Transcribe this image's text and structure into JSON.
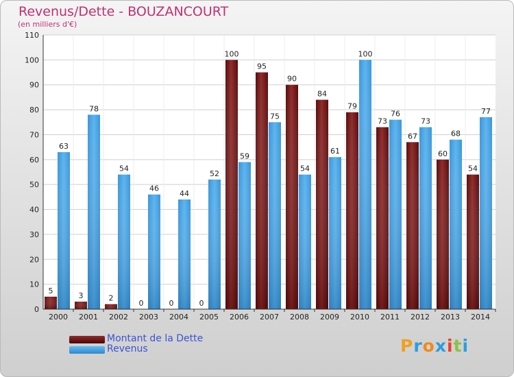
{
  "title": "Revenus/Dette - BOUZANCOURT",
  "subtitle": "(en milliers d'€)",
  "logo": {
    "letters": [
      "P",
      "r",
      "o",
      "x",
      "i",
      "t",
      "i"
    ],
    "colors": [
      "#f0a01e",
      "#2a9de0",
      "#f08a1a",
      "#2a9de0",
      "#e8402a",
      "#89c442",
      "#2a9de0"
    ]
  },
  "chart_data": {
    "type": "bar",
    "categories": [
      "2000",
      "2001",
      "2002",
      "2003",
      "2004",
      "2005",
      "2006",
      "2007",
      "2008",
      "2009",
      "2010",
      "2011",
      "2012",
      "2013",
      "2014"
    ],
    "series": [
      {
        "name": "Montant de la Dette",
        "color": "#7a1c1c",
        "values": [
          5,
          3,
          2,
          0,
          0,
          0,
          100,
          95,
          90,
          84,
          79,
          73,
          67,
          60,
          54
        ]
      },
      {
        "name": "Revenus",
        "color": "#3c9fe0",
        "values": [
          63,
          78,
          54,
          46,
          44,
          52,
          59,
          75,
          54,
          61,
          100,
          76,
          73,
          68,
          77
        ]
      }
    ],
    "ylim": [
      0,
      110
    ],
    "yticks": [
      0,
      10,
      20,
      30,
      40,
      50,
      60,
      70,
      80,
      90,
      100,
      110
    ],
    "grid": true,
    "legend": "bottom-left"
  }
}
